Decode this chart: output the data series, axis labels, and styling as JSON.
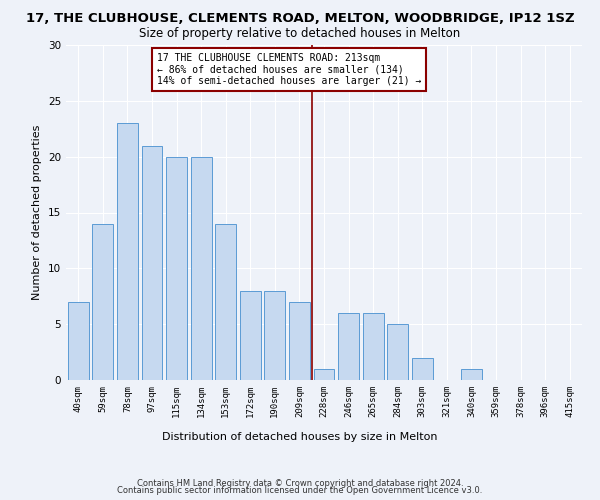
{
  "title": "17, THE CLUBHOUSE, CLEMENTS ROAD, MELTON, WOODBRIDGE, IP12 1SZ",
  "subtitle": "Size of property relative to detached houses in Melton",
  "xlabel": "Distribution of detached houses by size in Melton",
  "ylabel": "Number of detached properties",
  "categories": [
    "40sqm",
    "59sqm",
    "78sqm",
    "97sqm",
    "115sqm",
    "134sqm",
    "153sqm",
    "172sqm",
    "190sqm",
    "209sqm",
    "228sqm",
    "246sqm",
    "265sqm",
    "284sqm",
    "303sqm",
    "321sqm",
    "340sqm",
    "359sqm",
    "378sqm",
    "396sqm",
    "415sqm"
  ],
  "values": [
    7,
    14,
    23,
    21,
    20,
    20,
    14,
    8,
    8,
    7,
    1,
    6,
    6,
    5,
    2,
    0,
    1,
    0,
    0,
    0,
    0
  ],
  "bar_color": "#c6d9f0",
  "bar_edge_color": "#5b9bd5",
  "vline_color": "#8b0000",
  "annotation_text": "17 THE CLUBHOUSE CLEMENTS ROAD: 213sqm\n← 86% of detached houses are smaller (134)\n14% of semi-detached houses are larger (21) →",
  "annotation_box_color": "#8b0000",
  "ylim": [
    0,
    30
  ],
  "yticks": [
    0,
    5,
    10,
    15,
    20,
    25,
    30
  ],
  "footer_line1": "Contains HM Land Registry data © Crown copyright and database right 2024.",
  "footer_line2": "Contains public sector information licensed under the Open Government Licence v3.0.",
  "bg_color": "#eef2f9",
  "grid_color": "#ffffff",
  "title_fontsize": 9.5,
  "subtitle_fontsize": 8.5,
  "ylabel_fontsize": 8,
  "xlabel_fontsize": 8,
  "tick_fontsize": 6.5,
  "ytick_fontsize": 7.5,
  "annotation_fontsize": 7,
  "footer_fontsize": 6
}
